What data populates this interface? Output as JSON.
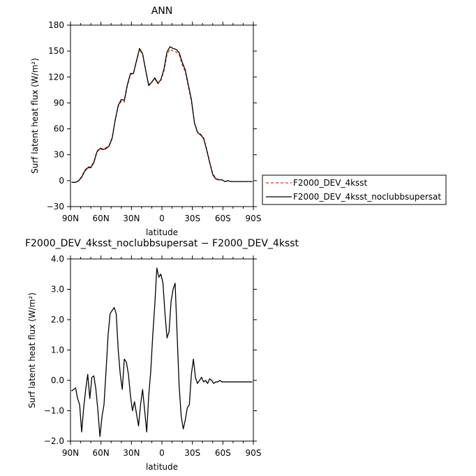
{
  "chart_data": [
    {
      "type": "line",
      "title": "ANN",
      "xlabel": "latitude",
      "ylabel": "Surf latent heat flux (W/m²)",
      "xlim": [
        90,
        -90
      ],
      "ylim": [
        -30,
        180
      ],
      "xticks": [
        90,
        60,
        30,
        0,
        -30,
        -60,
        -90
      ],
      "xtick_labels": [
        "90N",
        "60N",
        "30N",
        "0",
        "30S",
        "60S",
        "90S"
      ],
      "yticks": [
        -30,
        0,
        30,
        60,
        90,
        120,
        150,
        180
      ],
      "ytick_labels": [
        "−30",
        "0",
        "30",
        "60",
        "90",
        "120",
        "150",
        "180"
      ],
      "legend_position": "right",
      "series": [
        {
          "name": "F2000_DEV_4ksst",
          "color": "#e8301c",
          "dash": "dashed",
          "x": [
            89,
            85,
            82,
            79,
            76,
            73,
            70,
            67,
            64,
            61,
            58,
            55,
            52,
            49,
            46,
            43,
            40,
            37,
            34,
            31,
            28,
            25,
            22,
            19,
            16,
            13,
            10,
            7,
            4,
            1,
            -2,
            -5,
            -8,
            -11,
            -14,
            -17,
            -20,
            -23,
            -26,
            -29,
            -32,
            -35,
            -38,
            -41,
            -44,
            -47,
            -50,
            -53,
            -56,
            -59,
            -62,
            -65,
            -68,
            -71,
            -74,
            -77,
            -80,
            -83,
            -86,
            -89
          ],
          "y": [
            -2,
            -2,
            0,
            5,
            12,
            16,
            16,
            22,
            34,
            38,
            37,
            38,
            41,
            50,
            70,
            86,
            92,
            91,
            110,
            123,
            124,
            138,
            152,
            146,
            128,
            111,
            114,
            118,
            112,
            116,
            127,
            146,
            152,
            150,
            149,
            146,
            134,
            126,
            109,
            92,
            67,
            56,
            54,
            50,
            37,
            22,
            8,
            3,
            1,
            1,
            -1,
            0,
            -1,
            -1,
            -1,
            -1,
            -1,
            -1,
            -1,
            -1
          ]
        },
        {
          "name": "F2000_DEV_4ksst_noclubbsupersat",
          "color": "#000000",
          "dash": "solid",
          "x": [
            89,
            85,
            82,
            79,
            76,
            73,
            70,
            67,
            64,
            61,
            58,
            55,
            52,
            49,
            46,
            43,
            40,
            37,
            34,
            31,
            28,
            25,
            22,
            19,
            16,
            13,
            10,
            7,
            4,
            1,
            -2,
            -5,
            -8,
            -11,
            -14,
            -17,
            -20,
            -23,
            -26,
            -29,
            -32,
            -35,
            -38,
            -41,
            -44,
            -47,
            -50,
            -53,
            -56,
            -59,
            -62,
            -65,
            -68,
            -71,
            -74,
            -77,
            -80,
            -83,
            -86,
            -89
          ],
          "y": [
            -2,
            -2,
            0,
            4,
            11,
            15,
            15,
            21,
            33,
            37,
            36,
            37,
            40,
            49,
            70,
            87,
            94,
            93,
            111,
            124,
            124,
            139,
            153,
            147,
            128,
            110,
            114,
            119,
            113,
            117,
            129,
            149,
            155,
            153,
            152,
            148,
            137,
            128,
            111,
            94,
            67,
            56,
            53,
            49,
            36,
            21,
            7,
            2,
            1,
            1,
            -1,
            0,
            -1,
            -1,
            -1,
            -1,
            -1,
            -1,
            -1,
            -1
          ]
        }
      ]
    },
    {
      "type": "line",
      "title": "F2000_DEV_4ksst_noclubbsupersat − F2000_DEV_4ksst",
      "xlabel": "latitude",
      "ylabel": "Surf latent heat flux (W/m²)",
      "xlim": [
        90,
        -90
      ],
      "ylim": [
        -2.0,
        4.0
      ],
      "xticks": [
        90,
        60,
        30,
        0,
        -30,
        -60,
        -90
      ],
      "xtick_labels": [
        "90N",
        "60N",
        "30N",
        "0",
        "30S",
        "60S",
        "90S"
      ],
      "yticks": [
        -2.0,
        -1.0,
        0.0,
        1.0,
        2.0,
        3.0,
        4.0
      ],
      "ytick_labels": [
        "−2.0",
        "−1.0",
        "0.0",
        "1.0",
        "2.0",
        "3.0",
        "4.0"
      ],
      "series": [
        {
          "color": "#000000",
          "dash": "solid",
          "x": [
            89,
            87,
            85,
            83,
            81,
            79,
            77,
            75,
            73,
            71,
            69,
            67,
            65,
            63,
            61,
            59,
            57,
            55,
            53,
            51,
            49,
            47,
            45,
            43,
            41,
            39,
            37,
            35,
            33,
            31,
            29,
            27,
            25,
            23,
            21,
            19,
            17,
            15,
            13,
            11,
            9,
            7,
            5,
            3,
            1,
            -1,
            -3,
            -5,
            -7,
            -9,
            -11,
            -13,
            -15,
            -17,
            -19,
            -21,
            -23,
            -25,
            -27,
            -29,
            -31,
            -33,
            -35,
            -37,
            -39,
            -41,
            -43,
            -45,
            -47,
            -49,
            -51,
            -53,
            -55,
            -57,
            -59,
            -61,
            -63,
            -65,
            -67,
            -69,
            -71,
            -73,
            -75,
            -77,
            -79,
            -81,
            -83,
            -85,
            -87,
            -89
          ],
          "y": [
            -0.35,
            -0.3,
            -0.25,
            -0.6,
            -0.8,
            -1.7,
            -0.9,
            -0.3,
            0.2,
            -0.6,
            0.1,
            0.15,
            -0.3,
            -1.0,
            -1.85,
            -1.2,
            -0.8,
            0.3,
            1.5,
            2.2,
            2.3,
            2.4,
            2.2,
            1.0,
            0.2,
            -0.3,
            0.7,
            0.6,
            0.2,
            -0.5,
            -1.0,
            -0.7,
            -1.1,
            -1.5,
            -0.8,
            -0.3,
            -1.0,
            -1.7,
            -0.5,
            0.3,
            1.5,
            2.5,
            3.7,
            3.4,
            3.5,
            3.2,
            2.2,
            1.4,
            1.6,
            2.6,
            3.0,
            3.2,
            1.5,
            -0.2,
            -1.2,
            -1.6,
            -1.3,
            -0.9,
            -0.8,
            0.2,
            0.7,
            0.1,
            -0.1,
            0.0,
            0.1,
            -0.05,
            0.0,
            -0.1,
            0.05,
            0.0,
            -0.1,
            -0.05,
            -0.05,
            0.0,
            -0.05,
            -0.05,
            -0.05,
            -0.05,
            -0.05,
            -0.05,
            -0.05,
            -0.05,
            -0.05,
            -0.05,
            -0.05,
            -0.05,
            -0.05,
            -0.05,
            -0.05,
            -0.05
          ]
        }
      ]
    }
  ]
}
